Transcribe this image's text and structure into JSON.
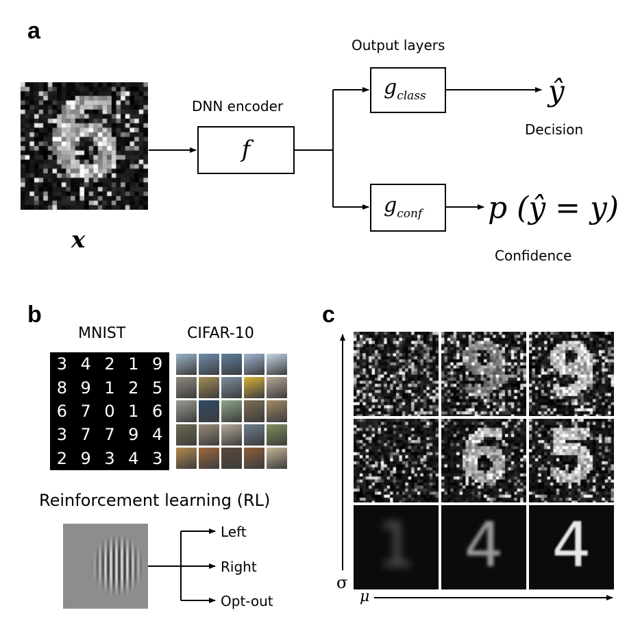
{
  "panel_a": {
    "letter": "a",
    "input_label": "x",
    "encoder_title": "DNN encoder",
    "encoder_symbol": "f",
    "output_layers_title": "Output layers",
    "class_head": "g",
    "class_sub": "class",
    "conf_head": "g",
    "conf_sub": "conf",
    "decision_symbol": "ŷ",
    "decision_label": "Decision",
    "confidence_symbol": "p (ŷ = y)",
    "confidence_label": "Confidence"
  },
  "panel_b": {
    "letter": "b",
    "mnist_title": "MNIST",
    "cifar_title": "CIFAR-10",
    "mnist_digits": [
      "3",
      "4",
      "2",
      "1",
      "9",
      "8",
      "9",
      "1",
      "2",
      "5",
      "6",
      "7",
      "0",
      "1",
      "6",
      "3",
      "7",
      "7",
      "9",
      "4",
      "2",
      "9",
      "3",
      "4",
      "3"
    ],
    "cifar_colors": [
      "#9bb4c8",
      "#6f8fb0",
      "#5d7f9e",
      "#9fb7d3",
      "#c7d7e8",
      "#8e8a80",
      "#a38c55",
      "#7c8da0",
      "#d7b33a",
      "#b7a994",
      "#9c9a92",
      "#2f4a66",
      "#8fa58a",
      "#7d6d55",
      "#a38a6a",
      "#6f6a52",
      "#9a8a78",
      "#b3a99a",
      "#6f7d8d",
      "#7f8f5a",
      "#b58a4f",
      "#a06a3c",
      "#5a4a3a",
      "#8f5d3a",
      "#c7b69a"
    ],
    "rl_title": "Reinforcement learning (RL)",
    "rl_actions": [
      "Left",
      "Right",
      "Opt-out"
    ]
  },
  "panel_c": {
    "letter": "c",
    "y_axis_label": "σ",
    "x_axis_label": "μ",
    "clean_digits": [
      "1",
      "4",
      "4"
    ]
  }
}
